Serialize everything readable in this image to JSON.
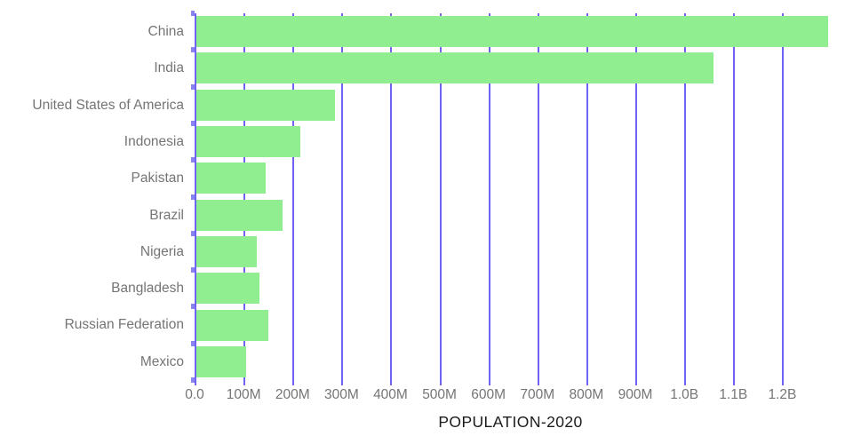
{
  "chart_data": {
    "type": "bar",
    "orientation": "horizontal",
    "title": "POPULATION-2020",
    "categories": [
      "China",
      "India",
      "United States of America",
      "Indonesia",
      "Pakistan",
      "Brazil",
      "Nigeria",
      "Bangladesh",
      "Russian Federation",
      "Mexico"
    ],
    "values_millions": [
      1290,
      1056,
      283,
      212,
      142,
      176,
      123,
      129,
      147,
      102
    ],
    "x_axis": {
      "tick_labels": [
        "0.0",
        "100M",
        "200M",
        "300M",
        "400M",
        "500M",
        "600M",
        "700M",
        "800M",
        "900M",
        "1.0B",
        "1.1B",
        "1.2B"
      ],
      "tick_values_millions": [
        0,
        100,
        200,
        300,
        400,
        500,
        600,
        700,
        800,
        900,
        1000,
        1100,
        1200
      ],
      "max_millions": 1290,
      "grid": true
    },
    "legend": null,
    "colors": {
      "bar": "#90EE90",
      "grid": "#6E63F2",
      "tick": "#8A84F0",
      "label_text": "#757575",
      "title_text": "#1B1B1B",
      "background": "#FFFFFF"
    }
  }
}
